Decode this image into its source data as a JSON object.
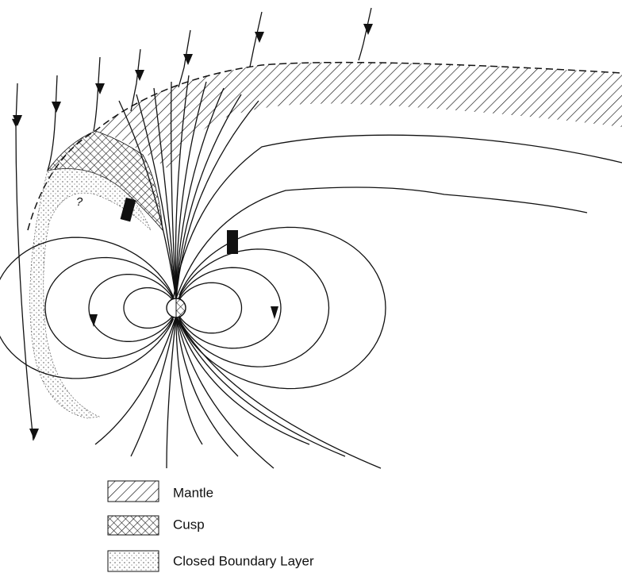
{
  "legend": [
    {
      "label": "Mantle"
    },
    {
      "label": "Cusp"
    },
    {
      "label": "Closed Boundary Layer"
    }
  ],
  "annotations": {
    "question_mark": "?"
  }
}
